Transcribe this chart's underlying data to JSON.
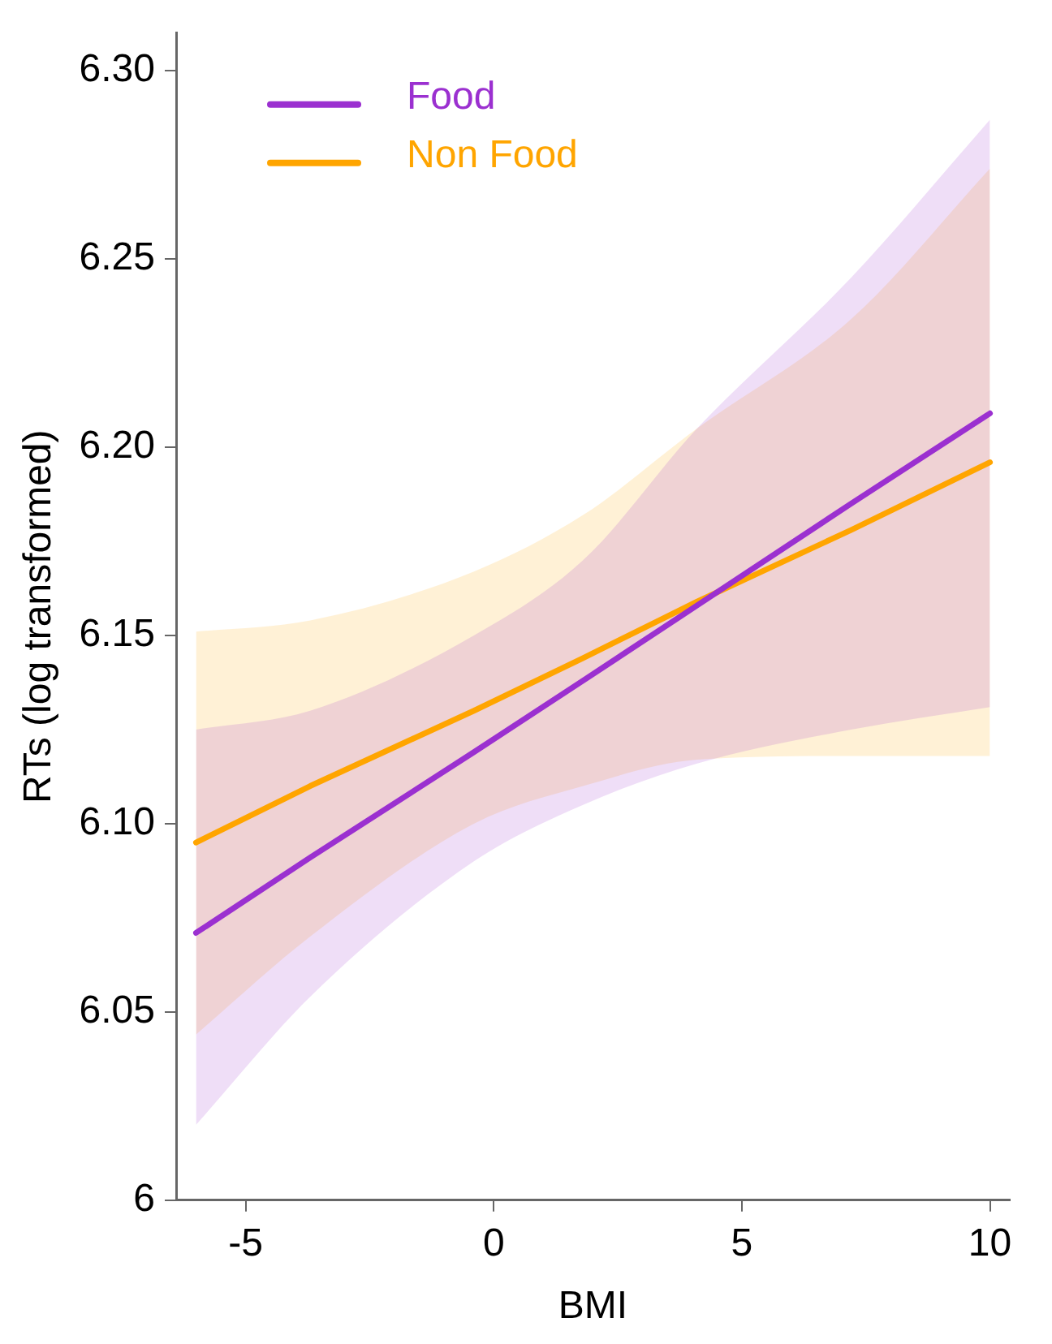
{
  "chart_data": {
    "type": "line",
    "xlabel": "BMI",
    "ylabel": "RTs (log transformed)",
    "xlim": [
      -6.4,
      10.4
    ],
    "xticks": [
      -5,
      0,
      5,
      10
    ],
    "ylim": [
      6,
      6.31
    ],
    "yticks": [
      6,
      6.05,
      {
        "value": 6.1,
        "label": "6.10"
      },
      6.15,
      {
        "value": 6.2,
        "label": "6.20"
      },
      6.25,
      {
        "value": 6.3,
        "label": "6.30"
      }
    ],
    "grid": false,
    "legend": "top left",
    "marker": "none",
    "line_style": "solid",
    "series": [
      {
        "name": "Food",
        "color": "#9b30d0",
        "x": [
          -6,
          -3.7,
          -0.4,
          1.8,
          4.1,
          7.2,
          10
        ],
        "values": [
          6.071,
          6.091,
          6.119,
          6.138,
          6.158,
          6.185,
          6.209
        ],
        "lower": [
          6.02,
          6.054,
          6.09,
          6.105,
          6.116,
          6.125,
          6.131
        ],
        "upper": [
          6.125,
          6.13,
          6.15,
          6.17,
          6.205,
          6.245,
          6.287
        ]
      },
      {
        "name": "Non Food",
        "color": "#ffa500",
        "x": [
          -6,
          -3.7,
          -0.4,
          1.8,
          4.1,
          7.2,
          10
        ],
        "values": [
          6.095,
          6.11,
          6.13,
          6.144,
          6.159,
          6.178,
          6.196
        ],
        "lower": [
          6.044,
          6.07,
          6.1,
          6.11,
          6.117,
          6.118,
          6.118
        ],
        "upper": [
          6.151,
          6.154,
          6.167,
          6.182,
          6.205,
          6.234,
          6.274
        ]
      }
    ]
  }
}
